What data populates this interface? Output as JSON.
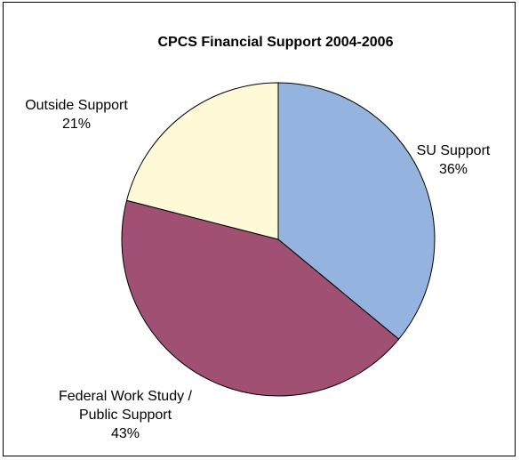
{
  "chart_data": {
    "type": "pie",
    "title": "CPCS Financial Support 2004-2006",
    "slices": [
      {
        "label": "SU Support",
        "value": 36,
        "value_label": "36%",
        "color": "#95b3df",
        "label_lines": [
          "SU Support",
          "36%"
        ]
      },
      {
        "label": "Federal Work Study / Public Support",
        "value": 43,
        "value_label": "43%",
        "color": "#a05073",
        "label_lines": [
          "Federal Work Study /",
          "Public Support",
          "43%"
        ]
      },
      {
        "label": "Outside Support",
        "value": 21,
        "value_label": "21%",
        "color": "#fefad8",
        "label_lines": [
          "Outside Support",
          "21%"
        ]
      }
    ],
    "start_angle_deg": 0,
    "direction": "clockwise",
    "slice_border_color": "#000000",
    "legend": "none"
  }
}
